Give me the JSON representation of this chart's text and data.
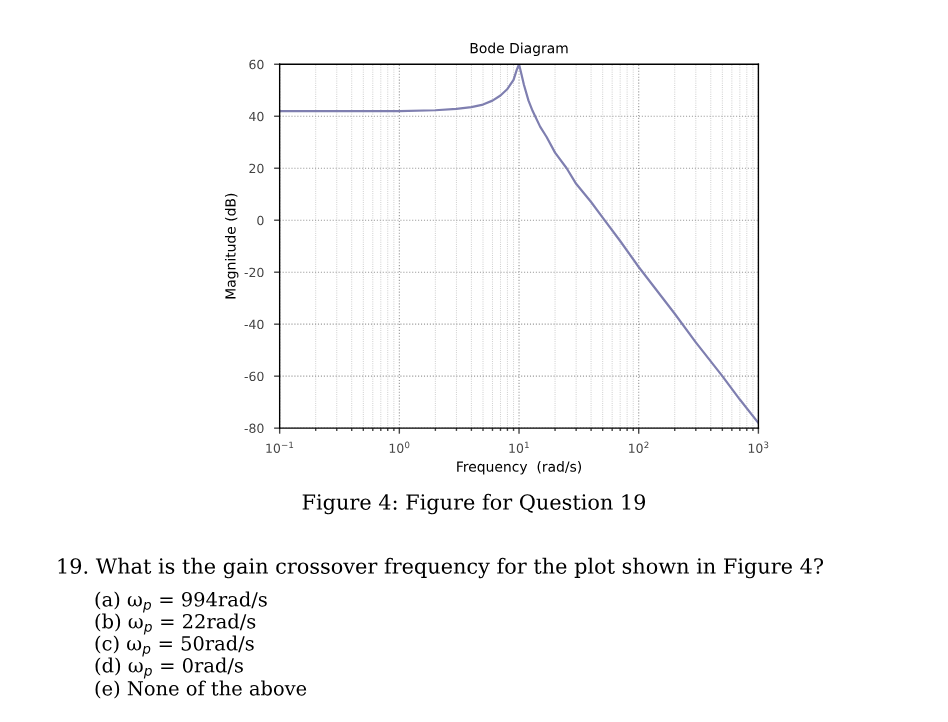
{
  "chart_data": {
    "type": "line",
    "title": "Bode Diagram",
    "xlabel": "Frequency  (rad/s)",
    "ylabel": "Magnitude (dB)",
    "x": [
      0.1,
      0.3,
      1,
      2,
      3,
      4,
      5,
      6,
      7,
      8,
      9,
      9.6,
      10,
      10.5,
      11,
      12,
      13,
      15,
      17,
      20,
      25,
      30,
      40,
      50,
      70,
      100,
      200,
      300,
      500,
      700,
      1000
    ],
    "series": [
      {
        "color": "#7f7fb0",
        "values": [
          42,
          42,
          42,
          42.3,
          42.8,
          43.5,
          44.5,
          46,
          48,
          50.5,
          54,
          58,
          60,
          56,
          52,
          46,
          42,
          36,
          32,
          26,
          20,
          14,
          7,
          1,
          -8,
          -18,
          -36,
          -47,
          -60,
          -69,
          -78
        ]
      }
    ],
    "xlim": [
      0.1,
      1000
    ],
    "ylim": [
      -80,
      60
    ],
    "xticks": [
      {
        "value": 0.1,
        "label": "10$^{−1}$"
      },
      {
        "value": 1,
        "label": "10$^{0}$"
      },
      {
        "value": 10,
        "label": "10$^{1}$"
      },
      {
        "value": 100,
        "label": "10$^{2}$"
      },
      {
        "value": 1000,
        "label": "10$^{3}$"
      }
    ],
    "yticks": [
      -80,
      -60,
      -40,
      -20,
      0,
      20,
      40,
      60
    ],
    "log": "x",
    "grid": true,
    "annotations": [
      "Figure 4: Figure for Question 19",
      "19. What is the gain crossover frequency for the plot shown in Figure 4?",
      "(a) ω$_{p}$ = 994rad/s",
      "(b) ω$_{p}$ = 22rad/s",
      "(c) ω$_{p}$ = 50rad/s",
      "(d) ω$_{p}$ = 0rad/s",
      "(e) None of the above"
    ]
  }
}
